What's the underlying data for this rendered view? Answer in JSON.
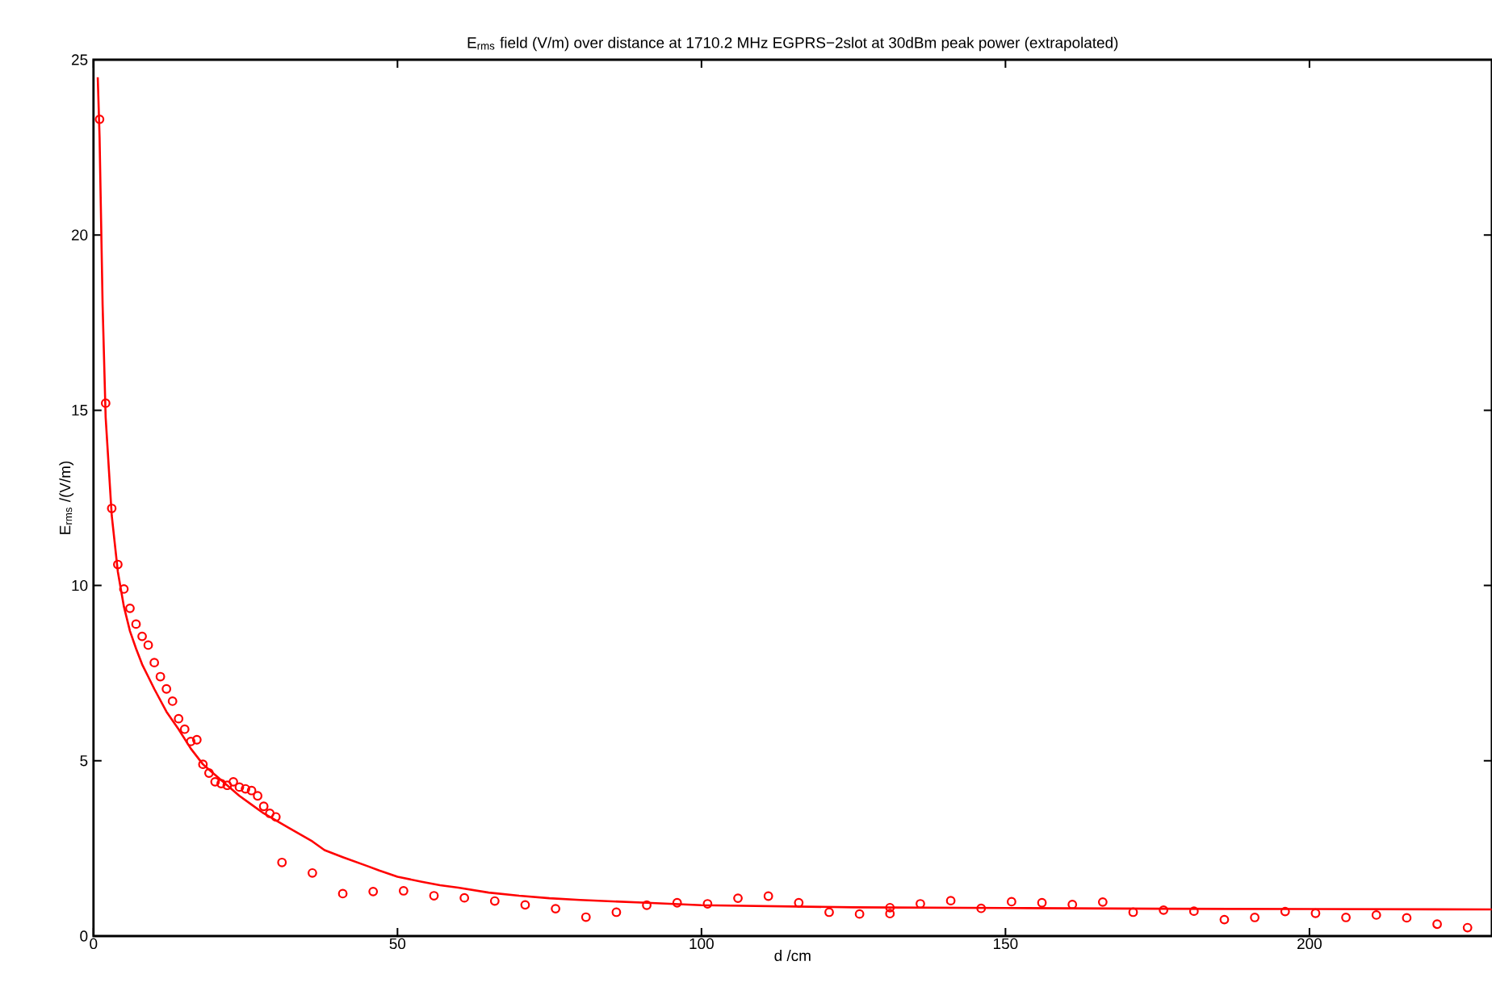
{
  "chart_data": {
    "type": "scatter",
    "title": "E$_{rms}$ field (V/m) over distance at 1710.2 MHz EGPRS−2slot at 30dBm peak power (extrapolated)",
    "xlabel": "d /cm",
    "ylabel": "E$_{rms}$ /(V/m)",
    "xlim": [
      0,
      230
    ],
    "ylim": [
      0,
      25
    ],
    "xticks": [
      0,
      50,
      100,
      150,
      200
    ],
    "yticks": [
      0,
      5,
      10,
      15,
      20,
      25
    ],
    "series": [
      {
        "type": "scatter",
        "color": "#ff0000",
        "marker": "circle",
        "x": [
          1,
          2,
          3,
          4,
          5,
          6,
          7,
          8,
          9,
          10,
          11,
          12,
          13,
          14,
          15,
          16,
          17,
          18,
          19,
          20,
          21,
          22,
          23,
          24,
          25,
          26,
          27,
          28,
          29,
          30,
          31,
          36,
          41,
          46,
          51,
          56,
          61,
          66,
          71,
          76,
          81,
          86,
          91,
          96,
          101,
          106,
          111,
          116,
          121,
          126,
          131,
          131,
          136,
          141,
          146,
          151,
          156,
          161,
          166,
          171,
          176,
          181,
          186,
          191,
          196,
          201,
          206,
          211,
          216,
          221,
          226
        ],
        "values": [
          23.3,
          15.2,
          12.2,
          10.6,
          9.9,
          9.35,
          8.9,
          8.55,
          8.3,
          7.8,
          7.4,
          7.05,
          6.7,
          6.2,
          5.9,
          5.55,
          5.6,
          4.9,
          4.65,
          4.4,
          4.35,
          4.3,
          4.4,
          4.25,
          4.2,
          4.15,
          4.0,
          3.7,
          3.5,
          3.4,
          2.1,
          1.8,
          1.21,
          1.27,
          1.29,
          1.15,
          1.09,
          1.0,
          0.89,
          0.78,
          0.54,
          0.68,
          0.88,
          0.95,
          0.92,
          1.08,
          1.14,
          0.95,
          0.68,
          0.63,
          0.81,
          0.64,
          0.92,
          1.01,
          0.79,
          0.98,
          0.95,
          0.9,
          0.97,
          0.68,
          0.74,
          0.71,
          0.47,
          0.53,
          0.7,
          0.65,
          0.53,
          0.6,
          0.52,
          0.34,
          0.24
        ]
      },
      {
        "type": "line",
        "color": "#ff0000",
        "marker": "none",
        "line_style": "solid",
        "x": [
          0.7,
          1,
          1.5,
          2,
          3,
          4,
          5,
          6,
          7,
          8,
          9,
          10,
          12,
          14,
          16,
          18,
          20,
          22,
          24,
          26,
          28,
          30,
          32,
          34,
          36,
          38,
          41,
          45,
          47,
          50,
          54,
          57,
          60,
          65,
          70,
          75,
          80,
          91,
          100,
          125,
          150,
          175,
          200,
          230
        ],
        "values": [
          24.5,
          22.8,
          18.0,
          14.8,
          12.0,
          10.4,
          9.4,
          8.7,
          8.2,
          7.75,
          7.4,
          7.05,
          6.4,
          5.9,
          5.35,
          4.9,
          4.6,
          4.3,
          4.0,
          3.75,
          3.5,
          3.3,
          3.1,
          2.9,
          2.7,
          2.45,
          2.25,
          2.0,
          1.87,
          1.69,
          1.55,
          1.45,
          1.38,
          1.24,
          1.15,
          1.08,
          1.03,
          0.95,
          0.88,
          0.82,
          0.8,
          0.78,
          0.77,
          0.76
        ]
      }
    ]
  }
}
